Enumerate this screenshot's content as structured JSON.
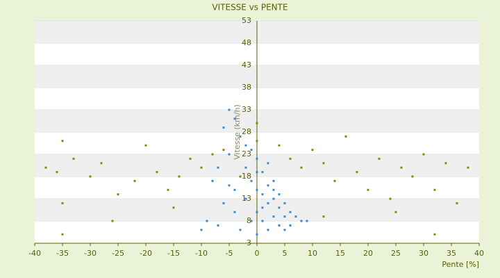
{
  "chart_data": {
    "type": "scatter",
    "title": "VITESSE vs PENTE",
    "x_label": "Pente [%]",
    "y_label": "Vitesse (km/h)",
    "xlim": [
      -40,
      40
    ],
    "xticks": [
      -40,
      -35,
      -30,
      -25,
      -20,
      -15,
      -10,
      -5,
      0,
      5,
      10,
      15,
      20,
      25,
      30,
      35,
      40
    ],
    "ylim": [
      3,
      53
    ],
    "yticks": [
      3,
      8,
      13,
      18,
      23,
      28,
      33,
      38,
      43,
      48,
      53
    ],
    "series": [
      {
        "color": "#3b8ad8",
        "x": [
          -5,
          -4,
          -6,
          -3,
          -2,
          -1,
          0,
          -7,
          -8,
          -9,
          -10,
          -6,
          -4,
          -3,
          -2,
          -1,
          0,
          0,
          0,
          1,
          1,
          1,
          2,
          2,
          2,
          3,
          3,
          3,
          4,
          4,
          5,
          5,
          5,
          6,
          7,
          8,
          9,
          -5,
          -4,
          -2,
          -1,
          0,
          1,
          2,
          3,
          4,
          6,
          -3,
          -7,
          -5
        ],
        "values": [
          33,
          31,
          29,
          27,
          25,
          24,
          22,
          20,
          17,
          8,
          6,
          12,
          15,
          18,
          20,
          17,
          15,
          10,
          5,
          19,
          14,
          8,
          16,
          12,
          6,
          17,
          13,
          9,
          14,
          11,
          12,
          9,
          6,
          10,
          9,
          8,
          8,
          23,
          10,
          13,
          8,
          19,
          11,
          21,
          15,
          7,
          7,
          6,
          7,
          16
        ]
      },
      {
        "color": "#8a8a00",
        "x": [
          -35,
          -38,
          -33,
          -30,
          -35,
          -28,
          -25,
          -22,
          -20,
          -18,
          -16,
          -14,
          -12,
          -10,
          -8,
          -6,
          -3,
          0,
          0,
          4,
          6,
          8,
          10,
          12,
          14,
          16,
          18,
          20,
          22,
          24,
          26,
          28,
          30,
          32,
          34,
          36,
          -26,
          -15,
          12,
          25,
          -35,
          32,
          -36,
          38
        ],
        "values": [
          26,
          20,
          22,
          18,
          12,
          21,
          14,
          17,
          25,
          19,
          15,
          18,
          22,
          20,
          23,
          24,
          18,
          30,
          26,
          25,
          22,
          20,
          24,
          21,
          17,
          27,
          19,
          15,
          22,
          13,
          20,
          18,
          23,
          15,
          21,
          12,
          8,
          11,
          9,
          10,
          5,
          5,
          19,
          20
        ]
      }
    ]
  }
}
